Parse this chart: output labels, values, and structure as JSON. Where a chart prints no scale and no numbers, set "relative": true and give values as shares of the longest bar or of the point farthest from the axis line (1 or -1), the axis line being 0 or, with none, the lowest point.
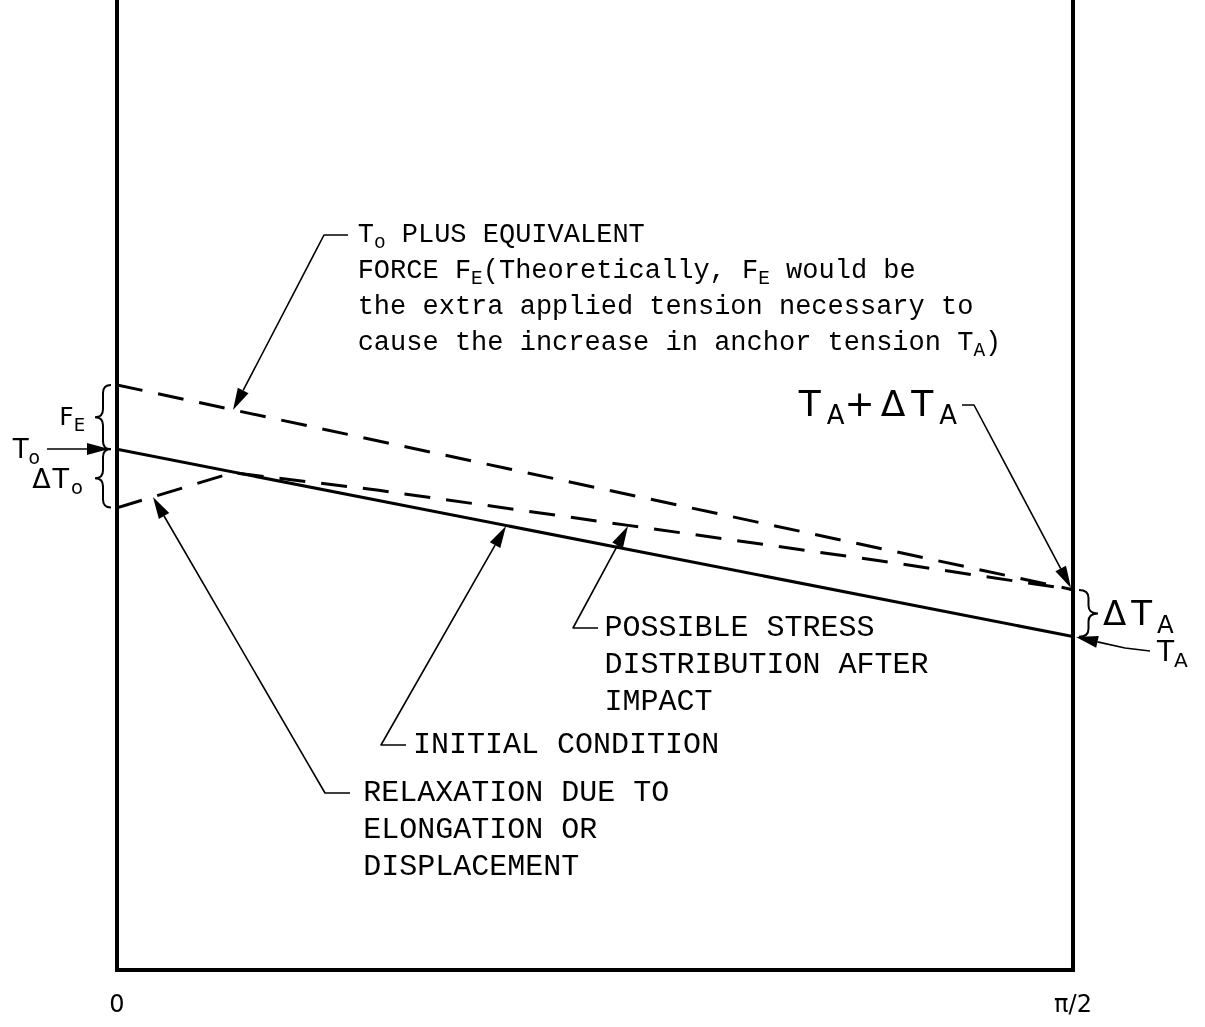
{
  "chart_data": {
    "type": "line",
    "relative": true,
    "xlim": [
      0,
      1.5708
    ],
    "xticks": [
      0,
      {
        "value": 1.5708,
        "label": "π/2"
      }
    ],
    "series": [
      {
        "color": "#000000",
        "line_style": "dashed",
        "x": [
          0,
          1.5708
        ],
        "values": [
          1,
          0.65
        ]
      },
      {
        "color": "#000000",
        "line_style": "solid",
        "x": [
          0,
          1.5708
        ],
        "values": [
          0.89,
          0.57
        ]
      },
      {
        "color": "#000000",
        "line_style": "dashed",
        "x": [
          0,
          0.19,
          0.43,
          0.84,
          1.25,
          1.5708
        ],
        "values": [
          0.79,
          0.85,
          0.82,
          0.76,
          0.7,
          0.65
        ]
      }
    ],
    "annotations": [
      "T$_{o}$ PLUS EQUIVALENT FORCE F$_{E}$(Theoretically, F$_{E}$ would be the extra applied tension necessary to cause the increase in anchor tension T$_{A}$)",
      "T$_{A}$+ΔT$_{A}$",
      "ΔT$_{A}$",
      {
        "text": "T$_{A}$",
        "x": 1.5708,
        "y": 0.57
      },
      "POSSIBLE STRESS DISTRIBUTION AFTER IMPACT",
      "INITIAL CONDITION",
      "RELAXATION DUE TO ELONGATION OR DISPLACEMENT",
      "F$_{E}$",
      "T$_{o}$",
      "ΔT$_{o}$"
    ]
  }
}
